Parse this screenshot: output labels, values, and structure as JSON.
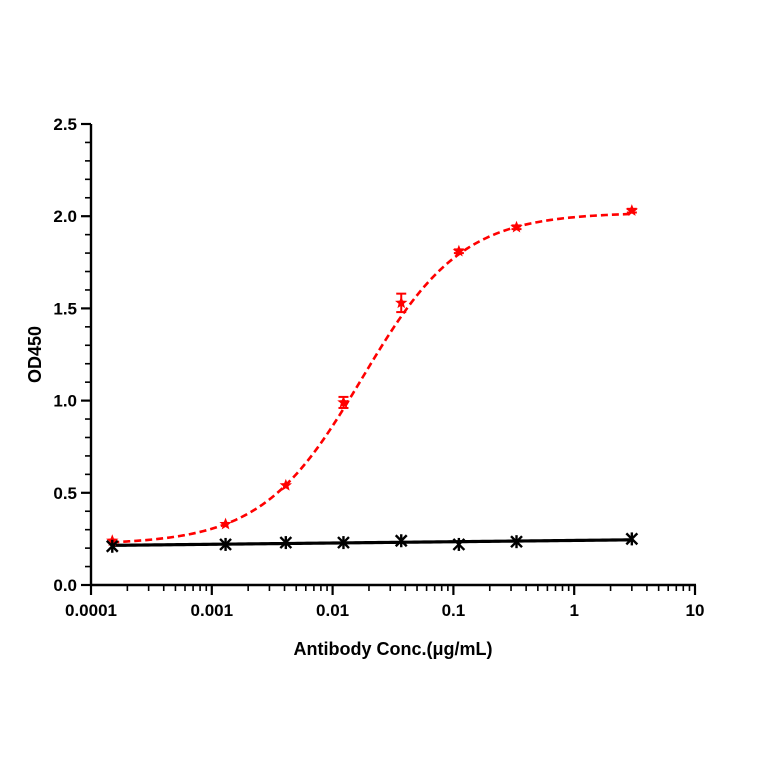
{
  "chart_data": {
    "type": "scatter",
    "title": "",
    "xlabel": "Antibody Conc.(μg/mL)",
    "ylabel": "OD450",
    "xscale": "log",
    "xlim": [
      0.0001,
      10
    ],
    "ylim": [
      0,
      2.5
    ],
    "x_ticks": [
      0.0001,
      0.001,
      0.01,
      0.1,
      1,
      10
    ],
    "x_tick_labels": [
      "0.0001",
      "0.001",
      "0.01",
      "0.1",
      "1",
      "10"
    ],
    "y_ticks": [
      0.0,
      0.5,
      1.0,
      1.5,
      2.0,
      2.5
    ],
    "y_tick_labels": [
      "0.0",
      "0.5",
      "1.0",
      "1.5",
      "2.0",
      "2.5"
    ],
    "grid": false,
    "legend": "none",
    "series": [
      {
        "color": "#ff0000",
        "marker": "star",
        "line_style": "dashed",
        "fit": "sigmoid",
        "x": [
          0.00015,
          0.0013,
          0.0041,
          0.0123,
          0.037,
          0.111,
          0.333,
          3.0
        ],
        "y": [
          0.24,
          0.33,
          0.54,
          0.99,
          1.53,
          1.81,
          1.94,
          2.03
        ],
        "error": [
          0.0,
          0.0,
          0.0,
          0.03,
          0.05,
          0.01,
          0.01,
          0.01
        ]
      },
      {
        "color": "#000000",
        "marker": "asterisk",
        "line_style": "solid",
        "fit": "linear",
        "x": [
          0.00015,
          0.0013,
          0.0041,
          0.0123,
          0.037,
          0.111,
          0.333,
          3.0
        ],
        "y": [
          0.21,
          0.22,
          0.23,
          0.23,
          0.24,
          0.22,
          0.235,
          0.25
        ],
        "error": [
          0.0,
          0.0,
          0.0,
          0.0,
          0.0,
          0.0,
          0.0,
          0.0
        ]
      }
    ],
    "fit_curves": [
      {
        "series": 0,
        "bottom": 0.22,
        "top": 2.02,
        "ec50": 0.0175,
        "hill": 1.05
      },
      {
        "series": 1,
        "start": 0.215,
        "end": 0.245
      }
    ]
  }
}
